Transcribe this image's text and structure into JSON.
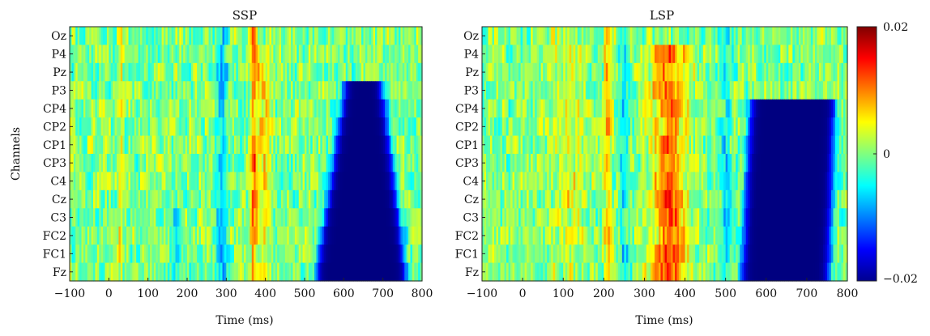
{
  "chart_data": [
    {
      "type": "heatmap",
      "title": "SSP",
      "xlabel": "Time (ms)",
      "ylabel": "Channels",
      "xlim": [
        -100,
        800
      ],
      "x_ticks": [
        -100,
        0,
        100,
        200,
        300,
        400,
        500,
        600,
        700,
        800
      ],
      "channels": [
        "Oz",
        "P4",
        "Pz",
        "P3",
        "CP4",
        "CP2",
        "CP1",
        "CP3",
        "C4",
        "Cz",
        "C3",
        "FC2",
        "FC1",
        "Fz"
      ],
      "pattern": {
        "description_free_params": true,
        "features": [
          {
            "t": 30,
            "w": 6,
            "amp": 0.0045,
            "ch_from": 0,
            "ch_to": 13
          },
          {
            "t": 370,
            "w": 8,
            "amp": 0.011,
            "ch_from": 0,
            "ch_to": 13
          },
          {
            "t": 395,
            "w": 18,
            "amp": 0.006,
            "ch_from": 1,
            "ch_to": 13
          },
          {
            "t": 290,
            "w": 14,
            "amp": -0.007,
            "ch_from": 0,
            "ch_to": 13
          },
          {
            "t": 175,
            "w": 12,
            "amp": -0.005,
            "ch_from": 10,
            "ch_to": 13
          }
        ],
        "negative_block": {
          "start_top": 600,
          "start_bottom": 530,
          "end_top": 700,
          "end_bottom": 760,
          "top_channel": 3,
          "amp": -0.02
        }
      }
    },
    {
      "type": "heatmap",
      "title": "LSP",
      "xlabel": "Time (ms)",
      "ylabel": "",
      "xlim": [
        -100,
        800
      ],
      "x_ticks": [
        -100,
        0,
        100,
        200,
        300,
        400,
        500,
        600,
        700,
        800
      ],
      "channels": [
        "Oz",
        "P4",
        "Pz",
        "P3",
        "CP4",
        "CP2",
        "CP1",
        "CP3",
        "C4",
        "Cz",
        "C3",
        "FC2",
        "FC1",
        "Fz"
      ],
      "pattern": {
        "features": [
          {
            "t": 210,
            "w": 10,
            "amp": 0.007,
            "ch_from": 0,
            "ch_to": 13
          },
          {
            "t": 360,
            "w": 45,
            "amp": 0.012,
            "ch_from": 1,
            "ch_to": 13
          },
          {
            "t": 115,
            "w": 40,
            "amp": 0.0035,
            "ch_from": 0,
            "ch_to": 13
          },
          {
            "t": 250,
            "w": 12,
            "amp": -0.006,
            "ch_from": 0,
            "ch_to": 13
          },
          {
            "t": 500,
            "w": 14,
            "amp": -0.006,
            "ch_from": 0,
            "ch_to": 13
          }
        ],
        "negative_block": {
          "start_top": 560,
          "start_bottom": 540,
          "end_top": 770,
          "end_bottom": 755,
          "top_channel": 4,
          "amp": -0.02
        }
      }
    }
  ],
  "colorbar": {
    "min": -0.02,
    "max": 0.02,
    "tick_values": [
      0.02,
      0,
      -0.02
    ],
    "tick_labels": [
      "0.02",
      "0",
      "−0.02"
    ]
  },
  "x_tick_labels": [
    "−100",
    "0",
    "100",
    "200",
    "300",
    "400",
    "500",
    "600",
    "700",
    "800"
  ]
}
